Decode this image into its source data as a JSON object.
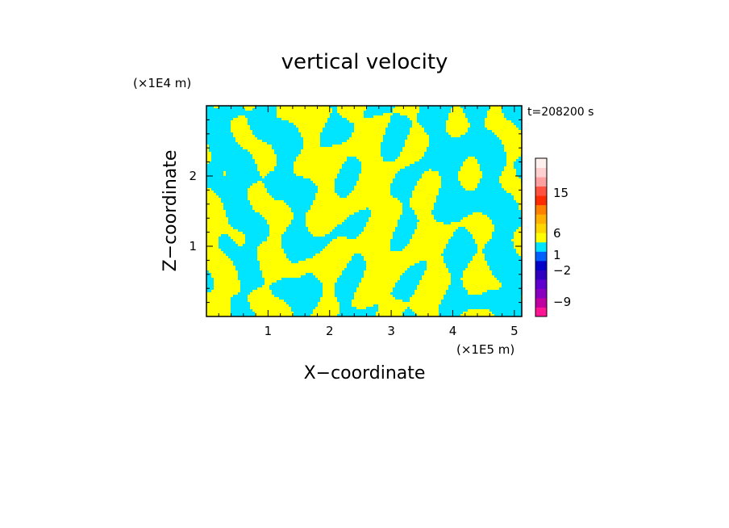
{
  "chart_data": {
    "type": "heatmap",
    "title": "vertical velocity",
    "xlabel": "X−coordinate",
    "ylabel": "Z−coordinate",
    "x_unit": "(×1E5 m)",
    "y_unit": "(×1E4 m)",
    "time_label": "t=208200 s",
    "xlim": [
      0,
      5.12
    ],
    "ylim": [
      0,
      3.0
    ],
    "x_ticks": [
      1,
      2,
      3,
      4,
      5
    ],
    "y_ticks": [
      1,
      2
    ],
    "grid": false,
    "colors": {
      "positive": "#ffff00",
      "negative": "#00e5ff",
      "frame": "#000000"
    },
    "colorbar": {
      "levels": [
        {
          "color": "#ff1493"
        },
        {
          "color": "#c000a0"
        },
        {
          "color": "#8a00c0"
        },
        {
          "color": "#6000d0"
        },
        {
          "color": "#3000c0"
        },
        {
          "color": "#0000c8"
        },
        {
          "color": "#0060ff"
        },
        {
          "color": "#00e5ff"
        },
        {
          "color": "#ffff00"
        },
        {
          "color": "#ffd700"
        },
        {
          "color": "#ffb000"
        },
        {
          "color": "#ff7f00"
        },
        {
          "color": "#ff2a00"
        },
        {
          "color": "#ff5040"
        },
        {
          "color": "#ffa0a0"
        },
        {
          "color": "#ffd0d0"
        },
        {
          "color": "#fff0f0"
        }
      ],
      "labels": [
        "15",
        "6",
        "1",
        "−2",
        "−9"
      ]
    }
  }
}
